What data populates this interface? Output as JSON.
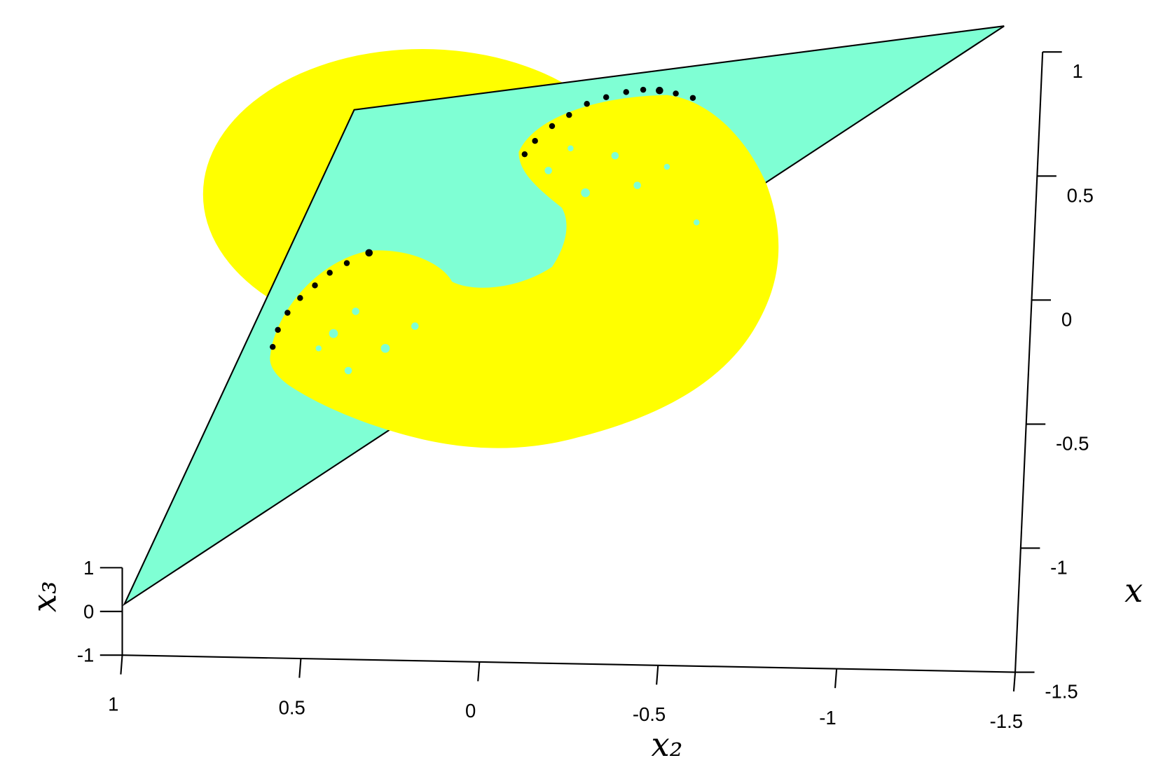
{
  "chart_data": {
    "type": "scatter3d",
    "xlabel": "x₂",
    "zlabel": "x₃",
    "ylabel": "x",
    "xlim": [
      1,
      -1.5
    ],
    "xticks": [
      1,
      0.5,
      0,
      -0.5,
      -1,
      -1.5
    ],
    "zlim": [
      -1,
      1
    ],
    "zticks": [
      -1,
      0,
      1
    ],
    "ylim": [
      -1.5,
      1
    ],
    "yticks": [
      -1.5,
      -1,
      -0.5,
      0,
      0.5,
      1
    ],
    "plane_color": "#7fffd4",
    "point_color": "#ffff00"
  }
}
